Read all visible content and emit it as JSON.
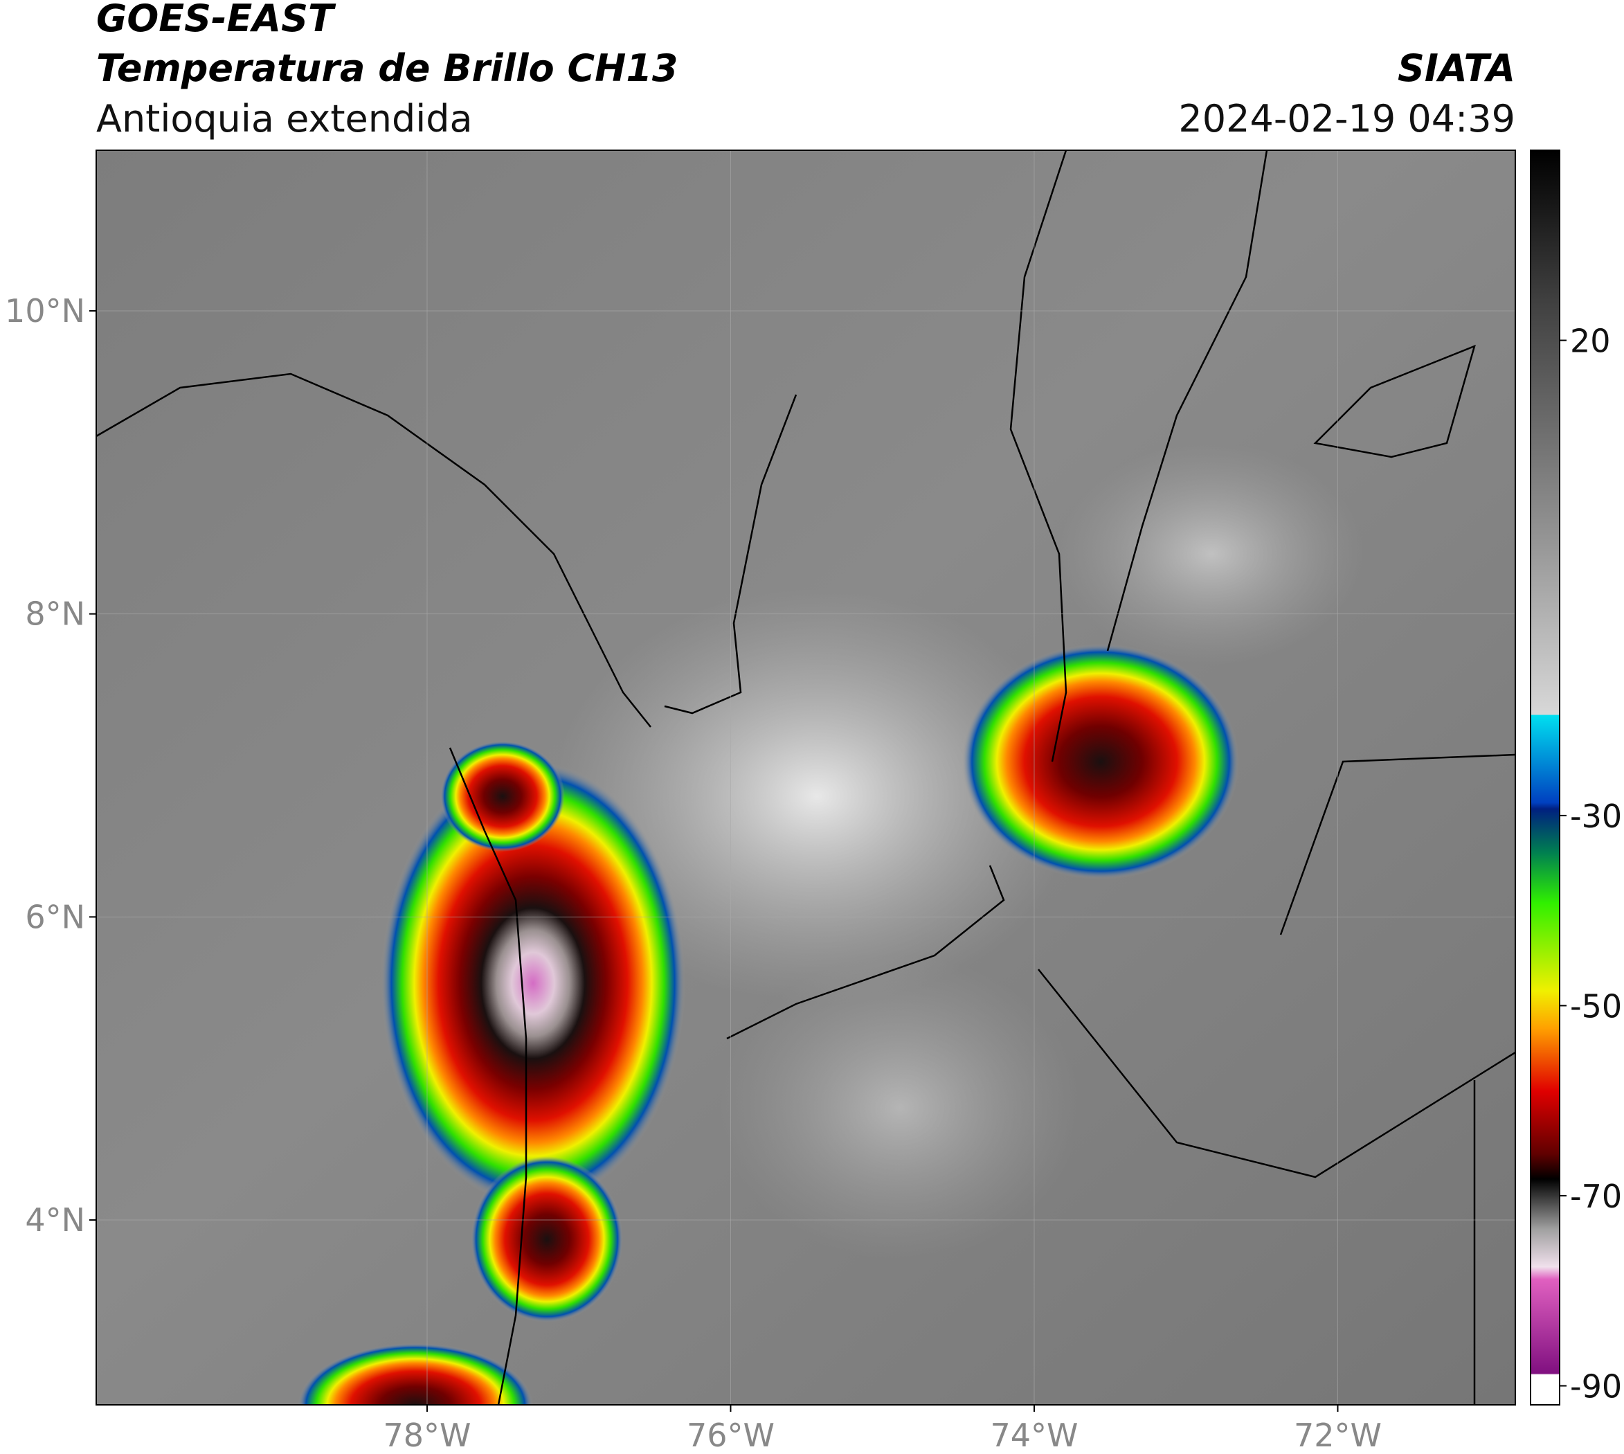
{
  "header": {
    "satellite": "GOES-EAST",
    "product": "Temperatura de Brillo CH13",
    "region": "Antioquia extendida",
    "agency": "SIATA",
    "datetime": "2024-02-19 04:39"
  },
  "map": {
    "xlim": [
      -80.18,
      -70.83
    ],
    "ylim": [
      2.78,
      11.06
    ],
    "xticks": [
      {
        "value": -78,
        "label": "78°W"
      },
      {
        "value": -76,
        "label": "76°W"
      },
      {
        "value": -74,
        "label": "74°W"
      },
      {
        "value": -72,
        "label": "72°W"
      }
    ],
    "yticks": [
      {
        "value": 10,
        "label": "10°N"
      },
      {
        "value": 8,
        "label": "8°N"
      },
      {
        "value": 6,
        "label": "6°N"
      },
      {
        "value": 4,
        "label": "4°N"
      }
    ]
  },
  "colorbar": {
    "lim": [
      -92,
      40
    ],
    "ticks": [
      20,
      -30,
      -50,
      -70,
      -90
    ]
  }
}
